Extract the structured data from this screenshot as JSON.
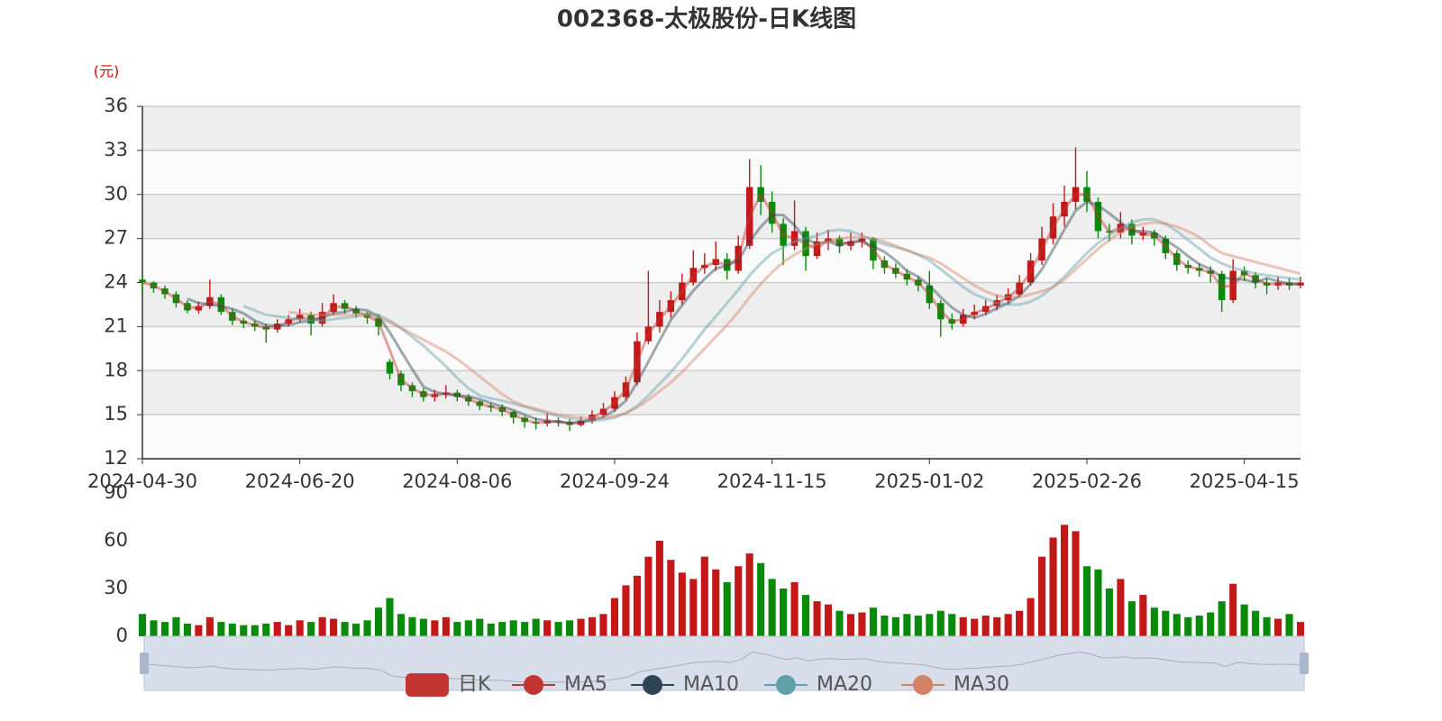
{
  "chart_data": {
    "type": "candlestick",
    "title": "002368-太极股份-日K线图",
    "y_label": "(元)",
    "ylim": [
      12,
      36
    ],
    "yticks": [
      12,
      15,
      18,
      21,
      24,
      27,
      30,
      33,
      36
    ],
    "volume_ylim": [
      0,
      90
    ],
    "volume_yticks": [
      0,
      30,
      60,
      90
    ],
    "up_color": "#c41818",
    "down_color": "#0a8a0a",
    "candle_series": {
      "name": "日K",
      "color": "#c23531"
    },
    "categories": [
      "2024-04-30",
      null,
      null,
      null,
      null,
      null,
      null,
      null,
      null,
      null,
      null,
      null,
      null,
      null,
      "2024-06-20",
      null,
      null,
      null,
      null,
      null,
      null,
      null,
      null,
      null,
      null,
      null,
      null,
      null,
      "2024-08-06",
      null,
      null,
      null,
      null,
      null,
      null,
      null,
      null,
      null,
      null,
      null,
      null,
      null,
      "2024-09-24",
      null,
      null,
      null,
      null,
      null,
      null,
      null,
      null,
      null,
      null,
      null,
      null,
      null,
      "2024-11-15",
      null,
      null,
      null,
      null,
      null,
      null,
      null,
      null,
      null,
      null,
      null,
      null,
      null,
      "2025-01-02",
      null,
      null,
      null,
      null,
      null,
      null,
      null,
      null,
      null,
      null,
      null,
      null,
      null,
      "2025-02-26",
      null,
      null,
      null,
      null,
      null,
      null,
      null,
      null,
      null,
      null,
      null,
      null,
      null,
      "2025-04-15",
      null,
      null,
      null,
      null,
      null
    ],
    "candles": [
      [
        24.2,
        24.0,
        23.4,
        24.4
      ],
      [
        24.0,
        23.6,
        23.3,
        24.1
      ],
      [
        23.6,
        23.2,
        22.9,
        23.8
      ],
      [
        23.2,
        22.6,
        22.3,
        23.4
      ],
      [
        22.6,
        22.1,
        21.9,
        22.8
      ],
      [
        22.1,
        22.4,
        21.9,
        22.7
      ],
      [
        22.4,
        23.0,
        22.2,
        24.2
      ],
      [
        23.0,
        22.0,
        21.8,
        23.2
      ],
      [
        22.0,
        21.4,
        21.1,
        22.2
      ],
      [
        21.4,
        21.2,
        20.9,
        21.6
      ],
      [
        21.2,
        21.0,
        20.7,
        21.4
      ],
      [
        21.0,
        20.8,
        19.9,
        21.2
      ],
      [
        20.8,
        21.2,
        20.6,
        21.5
      ],
      [
        21.2,
        21.5,
        21.0,
        21.8
      ],
      [
        21.5,
        21.8,
        21.3,
        22.2
      ],
      [
        21.8,
        21.2,
        20.4,
        22.0
      ],
      [
        21.2,
        22.0,
        21.0,
        22.6
      ],
      [
        22.0,
        22.6,
        21.8,
        23.2
      ],
      [
        22.6,
        22.2,
        21.9,
        22.8
      ],
      [
        22.2,
        21.9,
        21.6,
        22.4
      ],
      [
        21.9,
        21.6,
        21.2,
        22.0
      ],
      [
        21.6,
        21.0,
        20.4,
        21.8
      ],
      [
        18.6,
        17.8,
        17.4,
        18.8
      ],
      [
        17.8,
        17.0,
        16.6,
        18.0
      ],
      [
        17.0,
        16.6,
        16.2,
        17.2
      ],
      [
        16.6,
        16.2,
        15.9,
        16.8
      ],
      [
        16.2,
        16.4,
        15.9,
        16.7
      ],
      [
        16.4,
        16.5,
        16.1,
        17.0
      ],
      [
        16.5,
        16.2,
        15.9,
        16.7
      ],
      [
        16.2,
        15.9,
        15.6,
        16.4
      ],
      [
        15.9,
        15.6,
        15.3,
        16.0
      ],
      [
        15.6,
        15.5,
        15.2,
        15.8
      ],
      [
        15.5,
        15.2,
        14.9,
        15.7
      ],
      [
        15.2,
        14.8,
        14.4,
        15.3
      ],
      [
        14.8,
        14.5,
        14.1,
        14.9
      ],
      [
        14.5,
        14.4,
        14.0,
        14.8
      ],
      [
        14.4,
        14.6,
        14.2,
        15.1
      ],
      [
        14.6,
        14.5,
        14.2,
        14.8
      ],
      [
        14.5,
        14.3,
        13.9,
        14.7
      ],
      [
        14.3,
        14.6,
        14.2,
        14.9
      ],
      [
        14.6,
        15.0,
        14.4,
        15.3
      ],
      [
        15.0,
        15.4,
        14.8,
        15.8
      ],
      [
        15.4,
        16.2,
        15.2,
        16.6
      ],
      [
        16.2,
        17.2,
        16.0,
        17.6
      ],
      [
        17.2,
        20.0,
        17.0,
        20.6
      ],
      [
        20.0,
        21.0,
        19.8,
        24.8
      ],
      [
        21.0,
        22.0,
        20.6,
        22.8
      ],
      [
        22.0,
        22.8,
        21.6,
        23.4
      ],
      [
        22.8,
        24.0,
        22.5,
        24.6
      ],
      [
        24.0,
        25.0,
        23.8,
        26.2
      ],
      [
        25.0,
        25.2,
        24.6,
        26.0
      ],
      [
        25.2,
        25.6,
        24.8,
        26.8
      ],
      [
        25.6,
        24.8,
        24.2,
        26.0
      ],
      [
        24.8,
        26.5,
        24.6,
        27.2
      ],
      [
        26.5,
        30.5,
        26.3,
        32.4
      ],
      [
        30.5,
        29.5,
        28.6,
        32.0
      ],
      [
        29.5,
        28.0,
        27.4,
        30.2
      ],
      [
        28.0,
        26.5,
        25.2,
        28.4
      ],
      [
        26.5,
        27.5,
        26.2,
        29.6
      ],
      [
        27.5,
        25.8,
        24.8,
        27.8
      ],
      [
        25.8,
        26.8,
        25.6,
        27.4
      ],
      [
        26.8,
        27.0,
        26.2,
        27.6
      ],
      [
        27.0,
        26.5,
        26.0,
        27.2
      ],
      [
        26.5,
        26.8,
        26.2,
        27.4
      ],
      [
        26.8,
        27.0,
        26.4,
        27.4
      ],
      [
        27.0,
        25.5,
        24.9,
        27.1
      ],
      [
        25.5,
        25.0,
        24.6,
        25.8
      ],
      [
        25.0,
        24.6,
        24.3,
        25.3
      ],
      [
        24.6,
        24.2,
        23.8,
        24.9
      ],
      [
        24.2,
        23.8,
        23.4,
        24.4
      ],
      [
        23.8,
        22.6,
        22.2,
        24.8
      ],
      [
        22.6,
        21.5,
        20.3,
        22.8
      ],
      [
        21.5,
        21.2,
        20.8,
        21.9
      ],
      [
        21.2,
        21.8,
        21.0,
        22.2
      ],
      [
        21.8,
        22.0,
        21.5,
        22.5
      ],
      [
        22.0,
        22.4,
        21.8,
        22.8
      ],
      [
        22.4,
        22.8,
        22.1,
        23.2
      ],
      [
        22.8,
        23.2,
        22.5,
        23.6
      ],
      [
        23.2,
        24.0,
        23.0,
        24.5
      ],
      [
        24.0,
        25.5,
        23.8,
        26.0
      ],
      [
        25.5,
        27.0,
        25.2,
        27.8
      ],
      [
        27.0,
        28.5,
        26.6,
        29.4
      ],
      [
        28.5,
        29.5,
        27.8,
        30.6
      ],
      [
        29.5,
        30.5,
        29.0,
        33.2
      ],
      [
        30.5,
        29.5,
        28.8,
        31.6
      ],
      [
        29.5,
        27.5,
        27.0,
        29.8
      ],
      [
        27.5,
        27.4,
        26.8,
        28.0
      ],
      [
        27.4,
        28.0,
        27.0,
        28.8
      ],
      [
        28.0,
        27.2,
        26.6,
        28.3
      ],
      [
        27.2,
        27.4,
        26.9,
        27.8
      ],
      [
        27.4,
        27.0,
        26.5,
        27.6
      ],
      [
        27.0,
        26.0,
        25.6,
        27.2
      ],
      [
        26.0,
        25.2,
        24.8,
        26.2
      ],
      [
        25.2,
        25.0,
        24.6,
        25.5
      ],
      [
        25.0,
        24.8,
        24.4,
        25.3
      ],
      [
        24.8,
        24.6,
        24.0,
        25.1
      ],
      [
        24.6,
        22.8,
        22.0,
        24.8
      ],
      [
        22.8,
        24.8,
        22.6,
        25.6
      ],
      [
        24.8,
        24.5,
        24.1,
        25.1
      ],
      [
        24.5,
        24.0,
        23.6,
        24.7
      ],
      [
        24.0,
        23.8,
        23.2,
        24.3
      ],
      [
        23.8,
        24.0,
        23.5,
        24.4
      ],
      [
        24.0,
        23.8,
        23.5,
        24.3
      ],
      [
        23.8,
        24.0,
        23.6,
        24.4
      ]
    ],
    "volumes": [
      14,
      10,
      9,
      12,
      8,
      7,
      12,
      9,
      8,
      7,
      7,
      8,
      9,
      7,
      10,
      9,
      12,
      11,
      9,
      8,
      10,
      18,
      24,
      14,
      12,
      11,
      10,
      12,
      9,
      10,
      11,
      8,
      9,
      10,
      9,
      11,
      10,
      9,
      10,
      11,
      12,
      14,
      24,
      32,
      38,
      50,
      60,
      48,
      40,
      36,
      50,
      42,
      34,
      44,
      52,
      46,
      36,
      30,
      34,
      26,
      22,
      20,
      16,
      14,
      15,
      18,
      13,
      12,
      14,
      13,
      14,
      16,
      14,
      12,
      11,
      13,
      12,
      14,
      16,
      24,
      50,
      62,
      70,
      66,
      44,
      42,
      30,
      36,
      22,
      26,
      18,
      16,
      14,
      12,
      13,
      15,
      22,
      33,
      20,
      16,
      12,
      11,
      14,
      9
    ],
    "series": [
      {
        "name": "MA5",
        "color": "#c23531",
        "values": [
          24.0,
          23.8,
          23.4,
          22.9,
          22.35,
          22.25,
          22.7,
          22.5,
          21.7,
          21.3,
          21.1,
          20.9,
          21.0,
          21.35,
          21.65,
          21.5,
          21.6,
          22.3,
          22.4,
          22.05,
          21.75,
          21.3,
          19.4,
          17.4,
          16.8,
          16.4,
          16.3,
          16.45,
          16.35,
          16.05,
          15.75,
          15.55,
          15.35,
          15.0,
          14.65,
          14.45,
          14.5,
          14.55,
          14.4,
          14.45,
          14.8,
          15.2,
          15.8,
          16.7,
          18.6,
          20.5,
          21.5,
          22.4,
          23.4,
          24.5,
          25.1,
          25.4,
          25.2,
          25.65,
          28.5,
          30.0,
          28.75,
          27.25,
          27.0,
          26.65,
          26.3,
          26.9,
          26.75,
          26.65,
          26.9,
          26.25,
          25.25,
          24.8,
          24.4,
          24.0,
          23.2,
          22.05,
          21.35,
          21.5,
          21.9,
          22.2,
          22.6,
          23.0,
          23.6,
          24.75,
          26.25,
          27.75,
          29.0,
          30.0,
          30.0,
          28.5,
          27.45,
          27.7,
          27.6,
          27.3,
          27.2,
          26.5,
          25.6,
          25.1,
          24.9,
          24.7,
          23.7,
          23.8,
          24.65,
          24.25,
          23.9,
          23.9,
          23.9,
          23.9
        ]
      },
      {
        "name": "MA10",
        "color": "#2f4554",
        "values": [
          null,
          null,
          null,
          null,
          22.9,
          22.6,
          22.5,
          22.4,
          22.2,
          21.9,
          21.4,
          21.1,
          21.05,
          21.1,
          21.3,
          21.4,
          21.6,
          21.9,
          22.0,
          22.2,
          22.1,
          21.7,
          20.6,
          19.35,
          18.1,
          16.9,
          16.55,
          16.4,
          16.3,
          16.25,
          16.05,
          15.8,
          15.55,
          15.3,
          15.0,
          14.7,
          14.6,
          14.5,
          14.45,
          14.5,
          14.6,
          14.85,
          15.3,
          15.95,
          17.2,
          18.6,
          20.05,
          21.45,
          22.45,
          23.45,
          24.25,
          24.95,
          25.15,
          25.5,
          26.8,
          27.8,
          28.6,
          28.6,
          27.9,
          26.95,
          26.65,
          26.8,
          26.5,
          26.8,
          26.8,
          26.45,
          26.1,
          25.5,
          24.8,
          24.4,
          23.8,
          23.0,
          22.3,
          21.8,
          21.6,
          21.85,
          22.25,
          22.6,
          23.1,
          23.9,
          24.9,
          26.25,
          27.6,
          28.9,
          29.5,
          29.25,
          28.7,
          28.1,
          27.5,
          27.5,
          27.4,
          26.9,
          26.4,
          25.8,
          25.25,
          24.9,
          24.35,
          24.25,
          24.2,
          24.0,
          24.3,
          24.1,
          23.9,
          23.9
        ]
      },
      {
        "name": "MA20",
        "color": "#61a0a8",
        "values": [
          null,
          null,
          null,
          null,
          null,
          null,
          null,
          null,
          null,
          22.4,
          22.1,
          21.8,
          21.7,
          21.6,
          21.5,
          21.4,
          21.4,
          21.5,
          21.6,
          21.7,
          21.8,
          21.8,
          21.4,
          20.9,
          20.3,
          19.7,
          19.0,
          18.3,
          17.5,
          16.8,
          16.3,
          16.1,
          15.95,
          15.75,
          15.55,
          15.3,
          15.1,
          14.9,
          14.75,
          14.65,
          14.6,
          14.65,
          14.8,
          15.1,
          15.6,
          16.3,
          17.1,
          17.9,
          18.8,
          19.8,
          20.8,
          21.7,
          22.6,
          23.5,
          24.5,
          25.3,
          26.0,
          26.4,
          26.8,
          27.0,
          27.2,
          27.5,
          27.6,
          27.5,
          27.2,
          26.9,
          26.6,
          26.4,
          26.2,
          25.9,
          25.5,
          24.9,
          24.3,
          23.7,
          23.2,
          22.9,
          22.6,
          22.5,
          22.5,
          22.7,
          23.1,
          23.7,
          24.4,
          25.2,
          26.0,
          26.7,
          27.2,
          27.7,
          28.1,
          28.3,
          28.3,
          28.0,
          27.5,
          26.9,
          26.3,
          25.7,
          25.3,
          25.0,
          24.8,
          24.6,
          24.5,
          24.4,
          24.3,
          24.2
        ]
      },
      {
        "name": "MA30",
        "color": "#d48265",
        "values": [
          null,
          null,
          null,
          null,
          null,
          null,
          null,
          null,
          null,
          null,
          null,
          null,
          null,
          22.0,
          21.9,
          21.8,
          21.8,
          21.8,
          21.8,
          21.8,
          21.8,
          21.6,
          21.3,
          20.9,
          20.5,
          20.1,
          19.7,
          19.3,
          18.8,
          18.2,
          17.6,
          17.0,
          16.4,
          15.9,
          15.6,
          15.4,
          15.2,
          15.0,
          14.9,
          14.8,
          14.8,
          14.8,
          14.9,
          15.1,
          15.5,
          16.0,
          16.6,
          17.2,
          17.9,
          18.7,
          19.5,
          20.3,
          21.1,
          22.0,
          23.0,
          23.9,
          24.7,
          25.4,
          25.9,
          26.3,
          26.6,
          26.8,
          27.0,
          27.1,
          27.1,
          27.0,
          26.8,
          26.5,
          26.2,
          25.9,
          25.7,
          25.3,
          24.8,
          24.3,
          23.8,
          23.4,
          23.1,
          23.0,
          23.0,
          23.2,
          23.4,
          23.7,
          24.2,
          24.9,
          25.6,
          26.3,
          26.9,
          27.4,
          27.8,
          28.0,
          28.1,
          28.0,
          27.8,
          27.5,
          27.1,
          26.5,
          26.0,
          25.8,
          25.6,
          25.4,
          25.2,
          25.0,
          24.8,
          24.6
        ]
      }
    ]
  }
}
